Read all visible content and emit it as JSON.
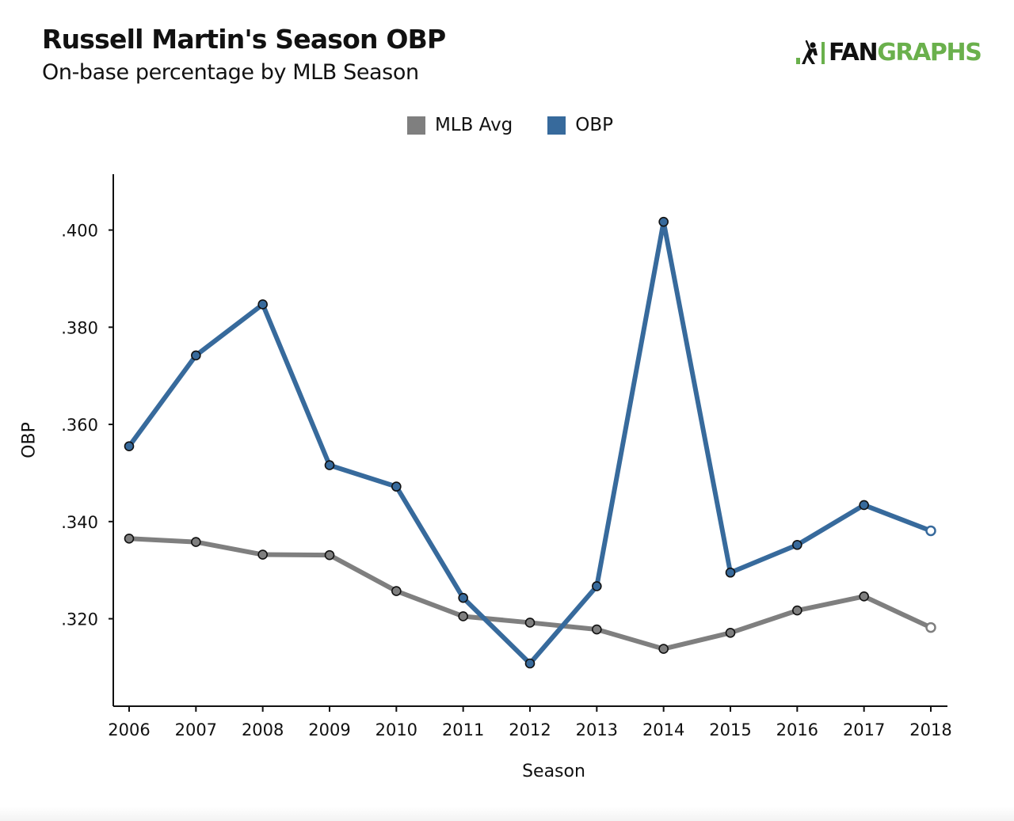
{
  "header": {
    "title": "Russell Martin's Season OBP",
    "subtitle": "On-base percentage by MLB Season"
  },
  "logo": {
    "part1": "FAN",
    "part2": "GRAPHS",
    "icon": "batter-icon",
    "colors": {
      "fan": "#111111",
      "graphs": "#6ab04c"
    }
  },
  "chart_data": {
    "type": "line",
    "title": "Russell Martin's Season OBP",
    "subtitle": "On-base percentage by MLB Season",
    "xlabel": "Season",
    "ylabel": "OBP",
    "x": [
      2006,
      2007,
      2008,
      2009,
      2010,
      2011,
      2012,
      2013,
      2014,
      2015,
      2016,
      2017,
      2018
    ],
    "ylim": [
      0.302,
      0.4115
    ],
    "yticks": [
      0.32,
      0.34,
      0.36,
      0.38,
      0.4
    ],
    "ytick_labels": [
      ".320",
      ".340",
      ".360",
      ".380",
      ".400"
    ],
    "grid": false,
    "legend_position": "top-center",
    "series": [
      {
        "name": "MLB Avg",
        "color": "#7f7f7f",
        "values": [
          0.3365,
          0.3358,
          0.3332,
          0.3331,
          0.3257,
          0.3205,
          0.3192,
          0.3178,
          0.3138,
          0.3171,
          0.3217,
          0.3246,
          0.3182
        ],
        "open_last_marker": true
      },
      {
        "name": "OBP",
        "color": "#376a9c",
        "values": [
          0.3555,
          0.3742,
          0.3847,
          0.3516,
          0.3472,
          0.3243,
          0.3108,
          0.3267,
          0.4017,
          0.3295,
          0.3352,
          0.3434,
          0.3381
        ],
        "open_last_marker": true
      }
    ]
  }
}
